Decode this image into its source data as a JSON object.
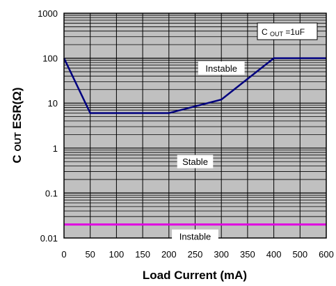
{
  "chart_data": {
    "type": "line",
    "title": "",
    "xlabel": "Load Current (mA)",
    "ylabel": {
      "main": "C",
      "sub": "OUT",
      "tail": " ESR(Ω)"
    },
    "x_ticks": [
      0,
      50,
      100,
      150,
      200,
      250,
      300,
      350,
      400,
      500,
      600
    ],
    "x_tick_labels": [
      "0",
      "50",
      "100",
      "150",
      "200",
      "250",
      "300",
      "350",
      "400",
      "500",
      "600"
    ],
    "y_scale": "log",
    "y_ticks": [
      0.01,
      0.1,
      1,
      10,
      100,
      1000
    ],
    "y_tick_labels": [
      "0.01",
      "0.1",
      "1",
      "10",
      "100",
      "1000"
    ],
    "ylim": [
      0.01,
      1000
    ],
    "grid": true,
    "background_color": "#c0c0c0",
    "series": [
      {
        "color": "#00007f",
        "x": [
          0,
          50,
          200,
          300,
          400,
          600
        ],
        "y": [
          100,
          6,
          6,
          12,
          100,
          100
        ]
      },
      {
        "color": "#e000e0",
        "x": [
          0,
          600
        ],
        "y": [
          0.02,
          0.02
        ]
      }
    ],
    "annotations": [
      {
        "text": "Instable",
        "x": 300,
        "y": 60
      },
      {
        "text": "Stable",
        "x": 250,
        "y": 0.5
      },
      {
        "text": "Instable",
        "x": 250,
        "y": 0.011
      }
    ],
    "legend_box": {
      "main": "C",
      "sub": "OUT",
      "tail": "=1uF"
    }
  }
}
